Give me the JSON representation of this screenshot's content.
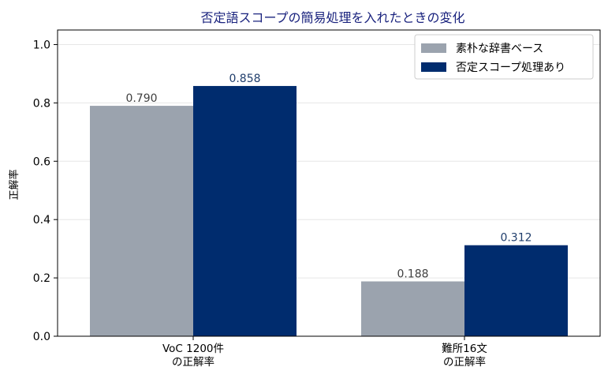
{
  "chart_data": {
    "type": "bar",
    "title": "否定語スコープの簡易処理を入れたときの変化",
    "xlabel": "",
    "ylabel": "正解率",
    "ylim": [
      0,
      1.05
    ],
    "yticks": [
      "0.0",
      "0.2",
      "0.4",
      "0.6",
      "0.8",
      "1.0"
    ],
    "categories": [
      [
        "VoC 1200件",
        "の正解率"
      ],
      [
        "難所16文",
        "の正解率"
      ]
    ],
    "series": [
      {
        "name": "素朴な辞書ベース",
        "color": "#9ba3ae",
        "label_color": "#404040",
        "values": [
          0.79,
          0.188
        ],
        "labels": [
          "0.790",
          "0.188"
        ]
      },
      {
        "name": "否定スコープ処理あり",
        "color": "#002c6e",
        "label_color": "#1f3d6b",
        "values": [
          0.858,
          0.312
        ],
        "labels": [
          "0.858",
          "0.312"
        ]
      }
    ],
    "grid": "y",
    "legend": "top-right"
  }
}
